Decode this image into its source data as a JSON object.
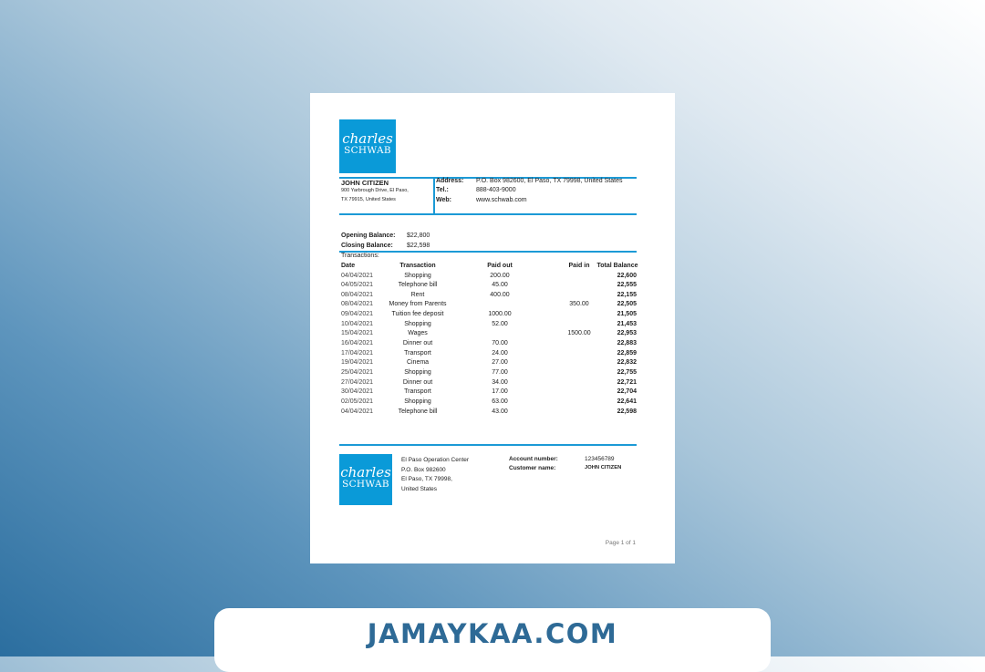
{
  "logo": {
    "line1": "charles",
    "line2": "SCHWAB"
  },
  "customer": {
    "name": "JOHN CITIZEN",
    "address_line1": "900 Yarbrough Drive, El Paso,",
    "address_line2": "TX 79915, United States"
  },
  "bank": {
    "address_label": "Address:",
    "address": "P.O. Box 982600, El Paso, TX 79998, United States",
    "tel_label": "Tel.:",
    "tel": "888-403-9000",
    "web_label": "Web:",
    "web": "www.schwab.com"
  },
  "balances": {
    "opening_label": "Opening Balance:",
    "opening": "$22,800",
    "closing_label": "Closing Balance:",
    "closing": "$22,598"
  },
  "transactions_label": "Transactions:",
  "columns": [
    "Date",
    "Transaction",
    "Paid out",
    "Paid in",
    "Total Balance"
  ],
  "rows": [
    [
      "04/04/2021",
      "Shopping",
      "200.00",
      "",
      "22,600"
    ],
    [
      "04/05/2021",
      "Telephone bill",
      "45.00",
      "",
      "22,555"
    ],
    [
      "08/04/2021",
      "Rent",
      "400.00",
      "",
      "22,155"
    ],
    [
      "08/04/2021",
      "Money from Parents",
      "",
      "350.00",
      "22,505"
    ],
    [
      "09/04/2021",
      "Tuition fee deposit",
      "1000.00",
      "",
      "21,505"
    ],
    [
      "10/04/2021",
      "Shopping",
      "52.00",
      "",
      "21,453"
    ],
    [
      "15/04/2021",
      "Wages",
      "",
      "1500.00",
      "22,953"
    ],
    [
      "16/04/2021",
      "Dinner out",
      "70.00",
      "",
      "22,883"
    ],
    [
      "17/04/2021",
      "Transport",
      "24.00",
      "",
      "22,859"
    ],
    [
      "19/04/2021",
      "Cinema",
      "27.00",
      "",
      "22,832"
    ],
    [
      "25/04/2021",
      "Shopping",
      "77.00",
      "",
      "22,755"
    ],
    [
      "27/04/2021",
      "Dinner out",
      "34.00",
      "",
      "22,721"
    ],
    [
      "30/04/2021",
      "Transport",
      "17.00",
      "",
      "22,704"
    ],
    [
      "02/05/2021",
      "Shopping",
      "63.00",
      "",
      "22,641"
    ],
    [
      "04/04/2021",
      "Telephone bill",
      "43.00",
      "",
      "22,598"
    ]
  ],
  "footer": {
    "center_lines": [
      "El Paso Operation Center",
      "P.O. Box 982600",
      "El Paso, TX 79998,",
      "United States"
    ],
    "account_label": "Account number:",
    "account": "123456789",
    "customer_label": "Customer name:",
    "customer": "JOHN CITIZEN",
    "page": "Page 1 of 1"
  },
  "watermark": "JAMAYKAA.COM",
  "colors": {
    "brand": "#0a9ad8",
    "banner_text": "#2e6a96"
  }
}
